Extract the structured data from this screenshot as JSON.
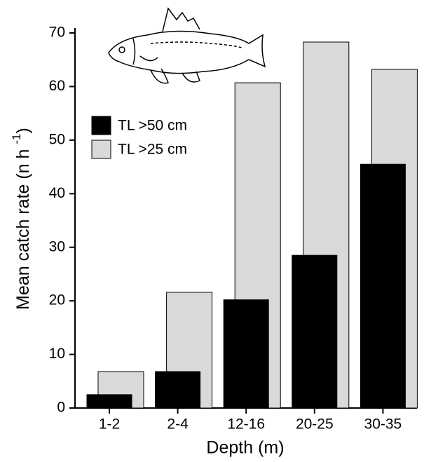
{
  "chart_data": {
    "type": "bar",
    "categories": [
      "1-2",
      "2-4",
      "12-16",
      "20-25",
      "30-35"
    ],
    "series": [
      {
        "name": "TL >50 cm",
        "color": "#000000",
        "values": [
          2.5,
          6.8,
          20.2,
          28.5,
          45.5
        ]
      },
      {
        "name": "TL >25 cm",
        "color": "#d9d9d9",
        "values": [
          6.8,
          21.6,
          60.7,
          68.3,
          63.2
        ]
      }
    ],
    "x_label": "Depth (m)",
    "y_label": [
      "Mean catch rate (n h ",
      "-1",
      ")"
    ],
    "ylim": [
      0,
      70
    ],
    "yticks": [
      0,
      10,
      20,
      30,
      40,
      50,
      60,
      70
    ],
    "legend": "upper left"
  }
}
